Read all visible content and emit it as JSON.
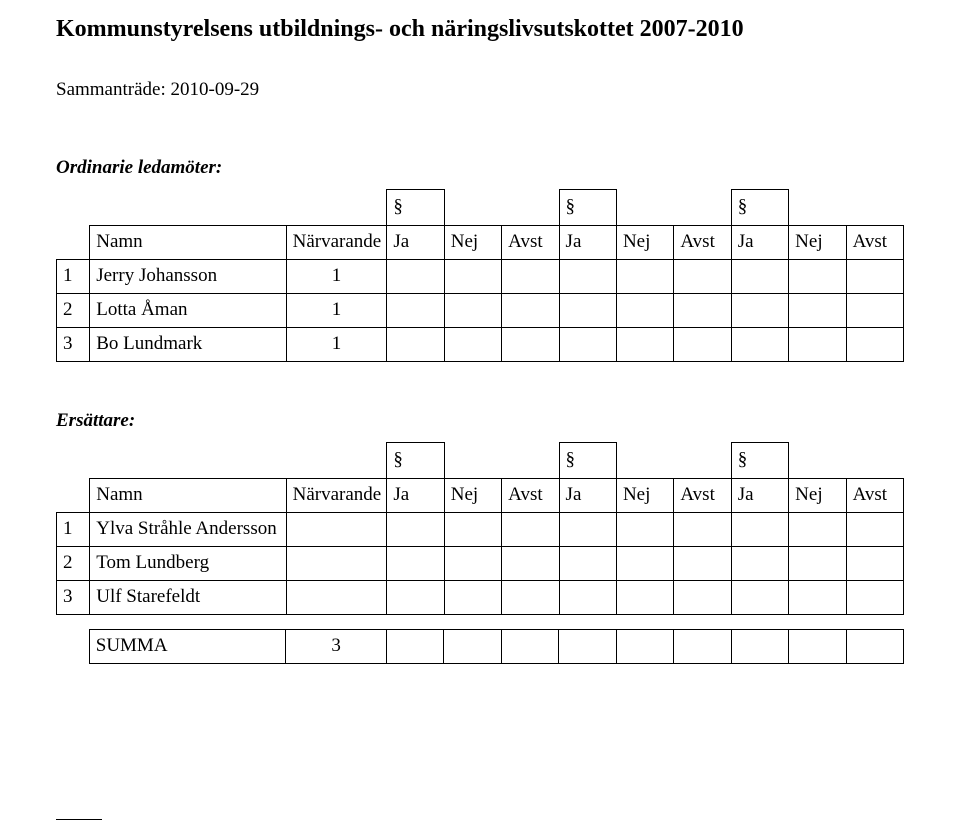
{
  "title": "Kommunstyrelsens utbildnings- och näringslivsutskottet 2007-2010",
  "meeting_label": "Sammanträde:",
  "meeting_date": "2010-09-29",
  "section_mark": "§",
  "ordinary": {
    "heading": "Ordinarie ledamöter:",
    "columns": {
      "name": "Namn",
      "present": "Närvarande",
      "ja": "Ja",
      "nej": "Nej",
      "avst": "Avst"
    },
    "rows": [
      {
        "num": "1",
        "name": "Jerry Johansson",
        "present": "1"
      },
      {
        "num": "2",
        "name": "Lotta Åman",
        "present": "1"
      },
      {
        "num": "3",
        "name": "Bo Lundmark",
        "present": "1"
      }
    ]
  },
  "substitutes": {
    "heading": "Ersättare:",
    "columns": {
      "name": "Namn",
      "present": "Närvarande",
      "ja": "Ja",
      "nej": "Nej",
      "avst": "Avst"
    },
    "rows": [
      {
        "num": "1",
        "name": "Ylva Stråhle Andersson",
        "present": ""
      },
      {
        "num": "2",
        "name": "Tom Lundberg",
        "present": ""
      },
      {
        "num": "3",
        "name": "Ulf Starefeldt",
        "present": ""
      }
    ]
  },
  "summary": {
    "label": "SUMMA",
    "value": "3"
  }
}
